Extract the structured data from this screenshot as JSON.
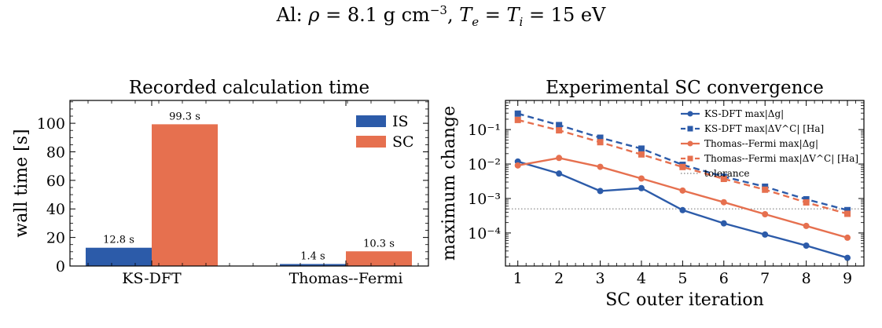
{
  "suptitle": "Al: ρ = 8.1 g cm⁻³, Tₑ = Tᵢ = 15 eV",
  "colors": {
    "blue": "#2c5ba9",
    "orange": "#e6704f",
    "tolerance": "#808080"
  },
  "chart_data": [
    {
      "type": "bar",
      "title": "Recorded calculation time",
      "xlabel": "",
      "ylabel": "wall time [s]",
      "categories": [
        "KS-DFT",
        "Thomas--Fermi"
      ],
      "ylim": [
        0,
        116
      ],
      "yticks": [
        0,
        20,
        40,
        60,
        80,
        100
      ],
      "series": [
        {
          "name": "IS",
          "values": [
            12.8,
            1.4
          ],
          "labels": [
            "12.8 s",
            "1.4 s"
          ],
          "color": "#2c5ba9"
        },
        {
          "name": "SC",
          "values": [
            99.3,
            10.3
          ],
          "labels": [
            "99.3 s",
            "10.3 s"
          ],
          "color": "#e6704f"
        }
      ],
      "legend": "top-right",
      "grid": false
    },
    {
      "type": "line",
      "title": "Experimental SC convergence",
      "xlabel": "SC outer iteration",
      "ylabel": "maximum change",
      "yscale": "log",
      "x": [
        1,
        2,
        3,
        4,
        5,
        6,
        7,
        8,
        9
      ],
      "xlim": [
        0.7,
        9.4
      ],
      "ylim": [
        1.1e-05,
        0.7
      ],
      "yticks": [
        0.0001,
        0.001,
        0.01,
        0.1
      ],
      "ytick_labels": [
        "10⁻⁴",
        "10⁻³",
        "10⁻²",
        "10⁻¹"
      ],
      "series": [
        {
          "name": "KS-DFT max|Δg|",
          "values": [
            0.0118,
            0.0053,
            0.00165,
            0.002,
            0.00046,
            0.00019,
            9e-05,
            4.3e-05,
            1.9e-05
          ],
          "color": "#2c5ba9",
          "marker": "circle",
          "dash": "solid"
        },
        {
          "name": "KS-DFT max|ΔV^C| [Ha]",
          "values": [
            0.29,
            0.135,
            0.058,
            0.028,
            0.0095,
            0.0043,
            0.0022,
            0.00095,
            0.00046
          ],
          "color": "#2c5ba9",
          "marker": "square",
          "dash": "dashed"
        },
        {
          "name": "Thomas--Fermi max|Δg|",
          "values": [
            0.0091,
            0.015,
            0.0083,
            0.0038,
            0.0017,
            0.00078,
            0.00035,
            0.00016,
            7.3e-05
          ],
          "color": "#e6704f",
          "marker": "circle",
          "dash": "solid"
        },
        {
          "name": "Thomas--Fermi max|ΔV^C| [Ha]",
          "values": [
            0.19,
            0.095,
            0.043,
            0.019,
            0.0082,
            0.0037,
            0.0018,
            0.00077,
            0.00036
          ],
          "color": "#e6704f",
          "marker": "square",
          "dash": "dashed"
        }
      ],
      "tolerance": {
        "name": "tolerance",
        "value": 0.0005
      },
      "legend": "top-right",
      "grid": false
    }
  ]
}
